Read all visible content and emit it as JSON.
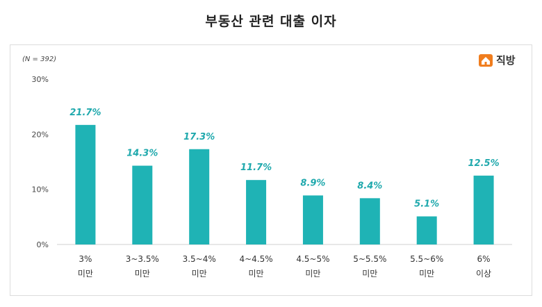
{
  "title": "부동산 관련 대출 이자",
  "sample_note": "(N = 392)",
  "brand": {
    "name": "직방",
    "icon": "house-logo-icon",
    "color": "#f07d1e"
  },
  "colors": {
    "bar": "#1fb3b5",
    "value_label": "#20a9ad"
  },
  "chart_data": {
    "type": "bar",
    "title": "부동산 관련 대출 이자",
    "categories": [
      [
        "3%",
        "미만"
      ],
      [
        "3~3.5%",
        "미만"
      ],
      [
        "3.5~4%",
        "미만"
      ],
      [
        "4~4.5%",
        "미만"
      ],
      [
        "4.5~5%",
        "미만"
      ],
      [
        "5~5.5%",
        "미만"
      ],
      [
        "5.5~6%",
        "미만"
      ],
      [
        "6%",
        "이상"
      ]
    ],
    "values": [
      21.7,
      14.3,
      17.3,
      11.7,
      8.9,
      8.4,
      5.1,
      12.5
    ],
    "value_labels": [
      "21.7%",
      "14.3%",
      "17.3%",
      "11.7%",
      "8.9%",
      "8.4%",
      "5.1%",
      "12.5%"
    ],
    "yticks": [
      "0%",
      "10%",
      "20%",
      "30%"
    ],
    "ylim": [
      0,
      30
    ],
    "xlabel": "",
    "ylabel": ""
  }
}
